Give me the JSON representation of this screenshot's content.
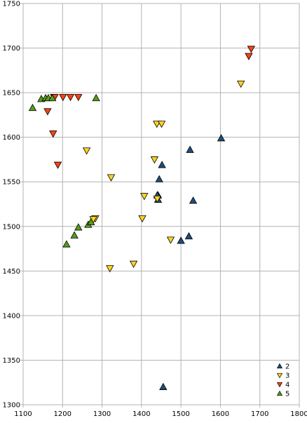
{
  "chart_data": {
    "type": "scatter",
    "title": "",
    "xlabel": "",
    "ylabel": "",
    "xlim": [
      1100,
      1800
    ],
    "ylim": [
      1300,
      1750
    ],
    "x_ticks": [
      "1100",
      "1200",
      "1300",
      "1400",
      "1500",
      "1600",
      "1700",
      "1800"
    ],
    "y_ticks": [
      "1300",
      "1350",
      "1400",
      "1450",
      "1500",
      "1550",
      "1600",
      "1650",
      "1700",
      "1750"
    ],
    "grid": true,
    "legend_placement": "bottom-right",
    "series": [
      {
        "name": "2",
        "marker": "triangle-up",
        "color": "#1f4e79",
        "x": [
          1452,
          1445,
          1442,
          1440,
          1442,
          1500,
          1520,
          1523,
          1531,
          1602,
          1455
        ],
        "y": [
          1569,
          1553,
          1535,
          1535,
          1530,
          1484,
          1489,
          1586,
          1529,
          1599,
          1320
        ]
      },
      {
        "name": "3",
        "marker": "triangle-down",
        "color": "#ffd320",
        "x": [
          1261,
          1323,
          1283,
          1278,
          1320,
          1380,
          1402,
          1407,
          1433,
          1439,
          1451,
          1440,
          1474,
          1652
        ],
        "y": [
          1585,
          1555,
          1509,
          1508,
          1453,
          1458,
          1509,
          1534,
          1575,
          1615,
          1615,
          1531,
          1485,
          1660
        ]
      },
      {
        "name": "4",
        "marker": "triangle-down",
        "color": "#ff420e",
        "x": [
          1178,
          1180,
          1201,
          1220,
          1240,
          1162,
          1176,
          1188,
          1672,
          1678
        ],
        "y": [
          1645,
          1645,
          1645,
          1645,
          1645,
          1629,
          1604,
          1569,
          1691,
          1699
        ]
      },
      {
        "name": "5",
        "marker": "triangle-up",
        "color": "#579d1c",
        "x": [
          1124,
          1146,
          1157,
          1164,
          1174,
          1285,
          1210,
          1230,
          1240,
          1265,
          1272
        ],
        "y": [
          1633,
          1643,
          1644,
          1644,
          1644,
          1644,
          1480,
          1490,
          1499,
          1502,
          1505
        ]
      }
    ]
  }
}
